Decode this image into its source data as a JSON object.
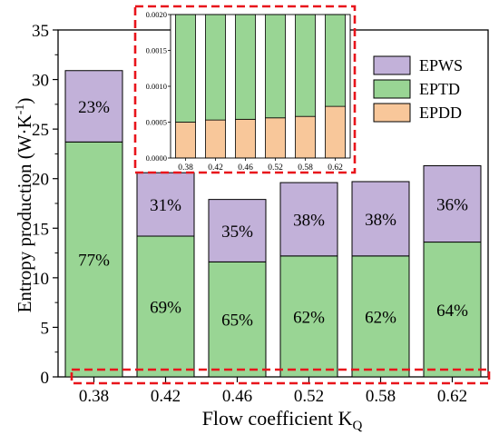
{
  "chart_data": [
    {
      "type": "bar",
      "stacked": true,
      "title": "",
      "xlabel": "Flow coefficient K",
      "xlabel_subscript": "Q",
      "ylabel": "Entropy production (W·K",
      "ylabel_superscript": "-1",
      "ylabel_suffix": ")",
      "categories": [
        "0.38",
        "0.42",
        "0.46",
        "0.52",
        "0.58",
        "0.62"
      ],
      "ylim": [
        0,
        35
      ],
      "yticks": [
        "0",
        "5",
        "10",
        "15",
        "20",
        "25",
        "30",
        "35"
      ],
      "grid": false,
      "legend_position": "top-right",
      "series": [
        {
          "name": "EPDD",
          "color": "#F8C79A",
          "values": [
            0.0005,
            0.00053,
            0.00054,
            0.00056,
            0.00058,
            0.00072
          ]
        },
        {
          "name": "EPTD",
          "color": "#99D594",
          "values": [
            23.7,
            14.2,
            11.6,
            12.2,
            12.2,
            13.6
          ],
          "labels": [
            "77%",
            "69%",
            "65%",
            "62%",
            "62%",
            "64%"
          ]
        },
        {
          "name": "EPWS",
          "color": "#C2B1D9",
          "values": [
            7.2,
            6.4,
            6.3,
            7.4,
            7.5,
            7.7
          ],
          "labels": [
            "23%",
            "31%",
            "35%",
            "38%",
            "38%",
            "36%"
          ]
        }
      ]
    },
    {
      "type": "bar",
      "stacked": true,
      "title": "",
      "inset": true,
      "categories": [
        "0.38",
        "0.42",
        "0.46",
        "0.52",
        "0.58",
        "0.62"
      ],
      "ylim": [
        0,
        0.002
      ],
      "yticks": [
        "0.0000",
        "0.0005",
        "0.0010",
        "0.0015",
        "0.0020"
      ],
      "series": [
        {
          "name": "EPDD",
          "color": "#F8C79A",
          "values": [
            0.0005,
            0.00053,
            0.00054,
            0.00056,
            0.00058,
            0.00072
          ]
        },
        {
          "name": "EPTD",
          "color": "#99D594",
          "values": [
            0.0015,
            0.00147,
            0.00146,
            0.00144,
            0.00142,
            0.00128
          ]
        }
      ]
    }
  ],
  "legend_items": [
    {
      "label": "EPWS",
      "color": "#C2B1D9"
    },
    {
      "label": "EPTD",
      "color": "#99D594"
    },
    {
      "label": "EPDD",
      "color": "#F8C79A"
    }
  ],
  "highlight_color": "#E8141B"
}
